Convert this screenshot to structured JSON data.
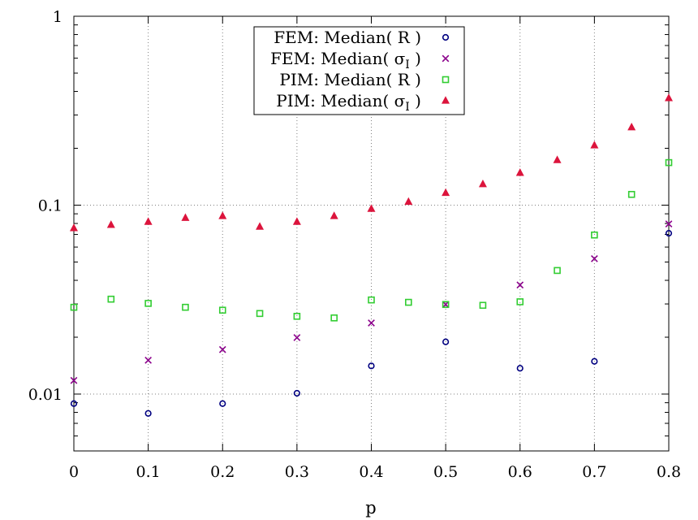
{
  "chart_data": {
    "type": "scatter",
    "xlabel": "p",
    "ylabel": "",
    "title": "",
    "xlim": [
      0,
      0.8
    ],
    "ylim": [
      0.005,
      1
    ],
    "yscale": "log",
    "grid": true,
    "legend_position": "top-center",
    "x_ticks": [
      0,
      0.1,
      0.2,
      0.3,
      0.4,
      0.5,
      0.6,
      0.7,
      0.8
    ],
    "x_tick_labels": [
      "0",
      "0.1",
      "0.2",
      "0.3",
      "0.4",
      "0.5",
      "0.6",
      "0.7",
      "0.8"
    ],
    "y_ticks": [
      0.01,
      0.1,
      1
    ],
    "y_tick_labels": [
      "0.01",
      "0.1",
      "1"
    ],
    "series": [
      {
        "name": "FEM: Median( R )",
        "label_main": "FEM: Median( R )",
        "label_sub": "",
        "label_tail": "",
        "marker": "circle",
        "color": "#000080",
        "x": [
          0,
          0.1,
          0.2,
          0.3,
          0.4,
          0.5,
          0.6,
          0.7,
          0.8
        ],
        "values": [
          0.0089,
          0.0079,
          0.0089,
          0.0101,
          0.0141,
          0.0189,
          0.0137,
          0.0149,
          0.071
        ]
      },
      {
        "name": "FEM: Median( σI )",
        "label_main": "FEM: Median( σ",
        "label_sub": "I",
        "label_tail": " )",
        "marker": "cross",
        "color": "#8b008b",
        "x": [
          0,
          0.1,
          0.2,
          0.3,
          0.4,
          0.5,
          0.6,
          0.7,
          0.8
        ],
        "values": [
          0.0118,
          0.0151,
          0.0172,
          0.0199,
          0.0238,
          0.0298,
          0.0378,
          0.0521,
          0.0795
        ]
      },
      {
        "name": "PIM: Median( R )",
        "label_main": "PIM: Median( R )",
        "label_sub": "",
        "label_tail": "",
        "marker": "square",
        "color": "#32cd32",
        "x": [
          0,
          0.05,
          0.1,
          0.15,
          0.2,
          0.25,
          0.3,
          0.35,
          0.4,
          0.45,
          0.5,
          0.55,
          0.6,
          0.65,
          0.7,
          0.75,
          0.8
        ],
        "values": [
          0.0288,
          0.0318,
          0.0302,
          0.0288,
          0.0278,
          0.0267,
          0.0258,
          0.0253,
          0.0315,
          0.0306,
          0.0298,
          0.0295,
          0.0308,
          0.0451,
          0.0695,
          0.114,
          0.168
        ]
      },
      {
        "name": "PIM: Median( σI )",
        "label_main": "PIM: Median( σ",
        "label_sub": "I",
        "label_tail": " )",
        "marker": "triangle",
        "color": "#dc143c",
        "x": [
          0,
          0.05,
          0.1,
          0.15,
          0.2,
          0.25,
          0.3,
          0.35,
          0.4,
          0.45,
          0.5,
          0.55,
          0.6,
          0.65,
          0.7,
          0.75,
          0.8
        ],
        "values": [
          0.0755,
          0.0785,
          0.0815,
          0.0855,
          0.0875,
          0.0768,
          0.0815,
          0.0875,
          0.0955,
          0.104,
          0.116,
          0.129,
          0.148,
          0.173,
          0.207,
          0.258,
          0.368
        ]
      }
    ]
  }
}
